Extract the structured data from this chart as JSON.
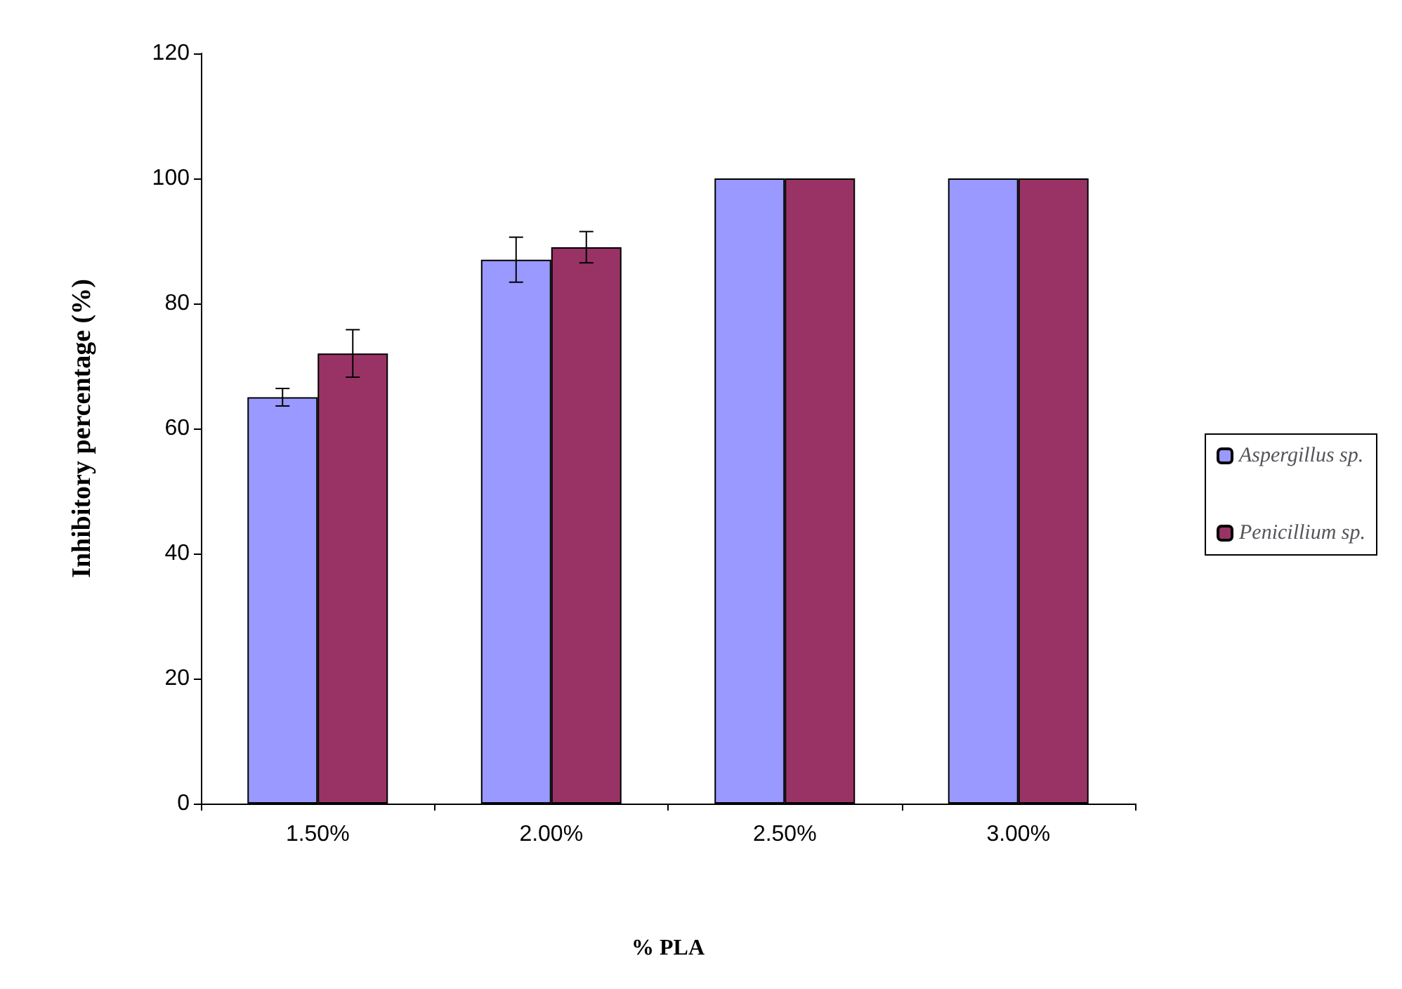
{
  "chart_data": {
    "type": "bar",
    "xlabel": "% PLA",
    "ylabel": "Inhibitory percentage (%)",
    "categories": [
      "1.50%",
      "2.00%",
      "2.50%",
      "3.00%"
    ],
    "series": [
      {
        "name": "Aspergillus sp.",
        "color": "#9999ff",
        "values": [
          65,
          87,
          100,
          100
        ],
        "errors": [
          1.4,
          3.6,
          null,
          null
        ]
      },
      {
        "name": "Penicillium sp.",
        "color": "#993366",
        "values": [
          72,
          89,
          100,
          100
        ],
        "errors": [
          3.8,
          2.5,
          null,
          null
        ]
      }
    ],
    "ylim": [
      0,
      120
    ],
    "yticks": [
      0,
      20,
      40,
      60,
      80,
      100,
      120
    ],
    "grid": false,
    "legend": "right"
  }
}
